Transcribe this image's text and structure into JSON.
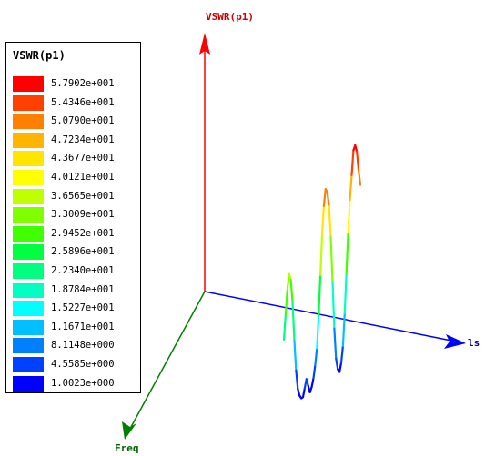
{
  "chart_data": {
    "type": "line",
    "view": "3d",
    "z_axis_label": "VSWR(p1)",
    "x_axis_label": "ls",
    "y_axis_label": "Freq",
    "legend": {
      "title": "VSWR(p1)",
      "placement": "left",
      "entries": [
        {
          "label": "5.7902e+001",
          "color": "#ff0000"
        },
        {
          "label": "5.4346e+001",
          "color": "#ff4000"
        },
        {
          "label": "5.0790e+001",
          "color": "#ff8000"
        },
        {
          "label": "4.7234e+001",
          "color": "#ffb400"
        },
        {
          "label": "4.3677e+001",
          "color": "#ffe600"
        },
        {
          "label": "4.0121e+001",
          "color": "#ffff00"
        },
        {
          "label": "3.6565e+001",
          "color": "#c0ff00"
        },
        {
          "label": "3.3009e+001",
          "color": "#80ff00"
        },
        {
          "label": "2.9452e+001",
          "color": "#40ff00"
        },
        {
          "label": "2.5896e+001",
          "color": "#00ff40"
        },
        {
          "label": "2.2340e+001",
          "color": "#00ff80"
        },
        {
          "label": "1.8784e+001",
          "color": "#00ffc0"
        },
        {
          "label": "1.5227e+001",
          "color": "#00ffff"
        },
        {
          "label": "1.1671e+001",
          "color": "#00c0ff"
        },
        {
          "label": "8.1148e+000",
          "color": "#0080ff"
        },
        {
          "label": "4.5585e+000",
          "color": "#0040ff"
        },
        {
          "label": "1.0023e+000",
          "color": "#0000ff"
        }
      ]
    },
    "value_range": [
      1.0023,
      57.902
    ],
    "series": [
      {
        "values": [
          20,
          26,
          32,
          36,
          34,
          28,
          18,
          10,
          5,
          3,
          2,
          2,
          4,
          6,
          4,
          2,
          3,
          5,
          8,
          12,
          20,
          30,
          40,
          47,
          51,
          50,
          46,
          38,
          26,
          14,
          6,
          3,
          2,
          4,
          8,
          16,
          26,
          36,
          44,
          50,
          56,
          57,
          55,
          50,
          46
        ]
      }
    ]
  }
}
